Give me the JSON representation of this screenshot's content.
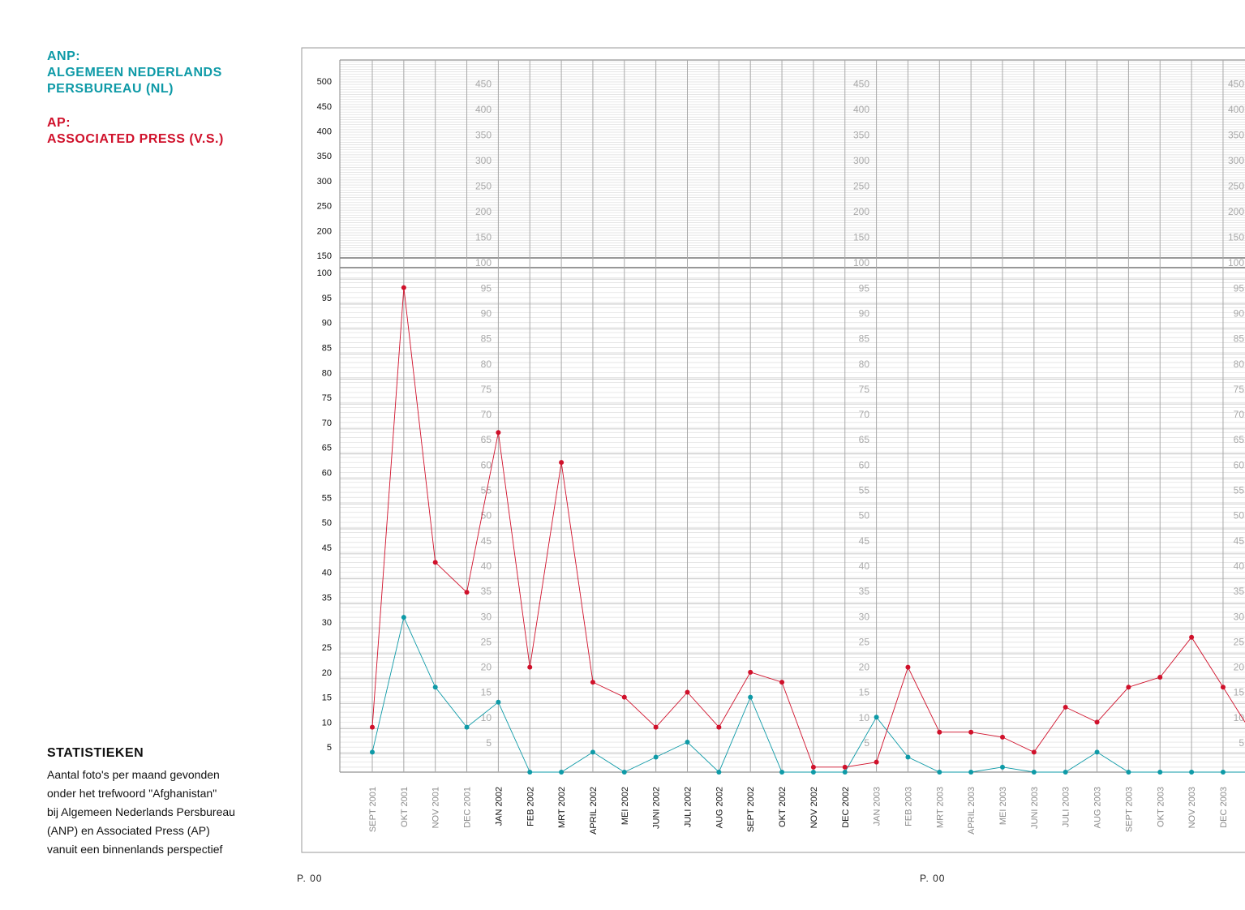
{
  "legend": {
    "anp_title": "ANP:",
    "anp_name_line1": "ALGEMEEN NEDERLANDS",
    "anp_name_line2": "PERSBUREAU (NL)",
    "ap_title": "AP:",
    "ap_name": "ASSOCIATED PRESS (V.S.)"
  },
  "stats": {
    "title": "STATISTIEKEN",
    "lines": [
      "Aantal foto's per maand gevonden",
      "onder het trefwoord \"Afghanistan\"",
      "bij Algemeen Nederlands Persbureau",
      "(ANP) en Associated Press (AP)",
      "vanuit een binnenlands perspectief"
    ]
  },
  "pages": [
    "P. 00",
    "P. 00"
  ],
  "colors": {
    "anp": "#0e9aa7",
    "ap": "#d0112b"
  },
  "chart_data": {
    "type": "line",
    "title": "",
    "xlabel": "",
    "ylabel": "",
    "categories": [
      "SEPT 2001",
      "OKT 2001",
      "NOV 2001",
      "DEC 2001",
      "JAN 2002",
      "FEB 2002",
      "MRT 2002",
      "APRIL 2002",
      "MEI 2002",
      "JUNI 2002",
      "JULI 2002",
      "AUG 2002",
      "SEPT 2002",
      "OKT 2002",
      "NOV 2002",
      "DEC 2002",
      "JAN 2003",
      "FEB 2003",
      "MRT 2003",
      "APRIL 2003",
      "MEI 2003",
      "JUNI 2003",
      "JULI 2003",
      "AUG 2003",
      "SEPT 2003",
      "OKT 2003",
      "NOV 2003",
      "DEC 2003"
    ],
    "highlighted_categories": [
      "JAN 2002",
      "FEB 2002",
      "MRT 2002",
      "APRIL 2002",
      "MEI 2002",
      "JUNI 2002",
      "JULI 2002",
      "AUG 2002",
      "SEPT 2002",
      "OKT 2002",
      "NOV 2002",
      "DEC 2002"
    ],
    "series": [
      {
        "name": "ANP",
        "color": "#0e9aa7",
        "values": [
          4,
          31,
          17,
          9,
          14,
          0,
          0,
          4,
          0,
          3,
          6,
          0,
          15,
          0,
          0,
          0,
          11,
          3,
          0,
          0,
          1,
          0,
          0,
          4,
          0,
          0,
          0,
          0
        ]
      },
      {
        "name": "AP",
        "color": "#d0112b",
        "values": [
          9,
          97,
          42,
          36,
          68,
          21,
          62,
          18,
          15,
          9,
          16,
          9,
          20,
          18,
          1,
          1,
          2,
          21,
          8,
          8,
          7,
          4,
          13,
          10,
          17,
          19,
          27,
          17
        ]
      }
    ],
    "y_axis_lower": {
      "ticks": [
        5,
        10,
        15,
        20,
        25,
        30,
        35,
        40,
        45,
        50,
        55,
        60,
        65,
        70,
        75,
        80,
        85,
        90,
        95,
        100
      ],
      "range": [
        0,
        100
      ]
    },
    "y_axis_upper": {
      "ticks": [
        150,
        200,
        250,
        300,
        350,
        400,
        450,
        500
      ],
      "range": [
        100,
        550
      ]
    },
    "y_axis_inner_lower": [
      "5",
      "10",
      "15",
      "20",
      "25",
      "30",
      "35",
      "40",
      "45",
      "50",
      "55",
      "60",
      "65",
      "70",
      "75",
      "80",
      "85",
      "90",
      "95"
    ],
    "y_axis_inner_upper": [
      "100",
      "150",
      "200",
      "250",
      "300",
      "350",
      "400",
      "450"
    ],
    "grid": true
  }
}
